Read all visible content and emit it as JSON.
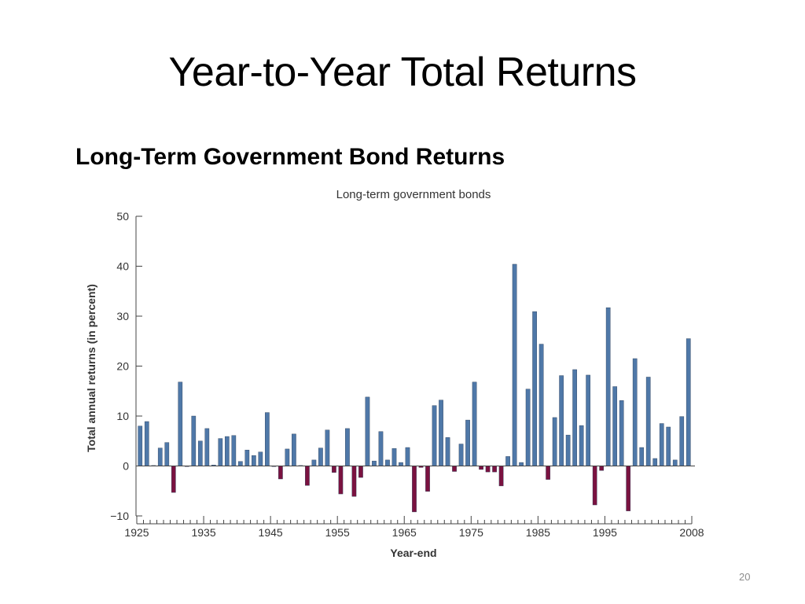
{
  "slide": {
    "title": "Year-to-Year Total Returns",
    "subtitle": "Long-Term Government Bond Returns",
    "page_number": "20"
  },
  "colors": {
    "positive_bar": "#4f78a8",
    "negative_bar": "#7a1240",
    "axis": "#444444"
  },
  "chart_data": {
    "type": "bar",
    "title": "Long-term government bonds",
    "xlabel": "Year-end",
    "ylabel": "Total annual returns (in percent)",
    "ylim": [
      -10,
      50
    ],
    "yticks": [
      -10,
      0,
      10,
      20,
      30,
      40,
      50
    ],
    "ytick_labels": [
      "−10",
      "0",
      "10",
      "20",
      "30",
      "40",
      "50"
    ],
    "xlim": [
      1925,
      2008
    ],
    "xticks": [
      1925,
      1935,
      1945,
      1955,
      1965,
      1975,
      1985,
      1995,
      2008
    ],
    "xtick_labels": [
      "1925",
      "1935",
      "1945",
      "1955",
      "1965",
      "1975",
      "1985",
      "1995",
      "2008"
    ],
    "grid": false,
    "x": [
      1926,
      1927,
      1928,
      1929,
      1930,
      1931,
      1932,
      1933,
      1934,
      1935,
      1936,
      1937,
      1938,
      1939,
      1940,
      1941,
      1942,
      1943,
      1944,
      1945,
      1946,
      1947,
      1948,
      1949,
      1950,
      1951,
      1952,
      1953,
      1954,
      1955,
      1956,
      1957,
      1958,
      1959,
      1960,
      1961,
      1962,
      1963,
      1964,
      1965,
      1966,
      1967,
      1968,
      1969,
      1970,
      1971,
      1972,
      1973,
      1974,
      1975,
      1976,
      1977,
      1978,
      1979,
      1980,
      1981,
      1982,
      1983,
      1984,
      1985,
      1986,
      1987,
      1988,
      1989,
      1990,
      1991,
      1992,
      1993,
      1994,
      1995,
      1996,
      1997,
      1998,
      1999,
      2000,
      2001,
      2002,
      2003,
      2004,
      2005,
      2006,
      2007,
      2008
    ],
    "values": [
      8.0,
      8.9,
      0.1,
      3.6,
      4.7,
      -5.3,
      16.8,
      -0.1,
      10.0,
      5.0,
      7.5,
      0.2,
      5.5,
      5.9,
      6.1,
      0.9,
      3.2,
      2.1,
      2.8,
      10.7,
      -0.1,
      -2.6,
      3.4,
      6.4,
      0.1,
      -3.9,
      1.2,
      3.6,
      7.2,
      -1.3,
      -5.6,
      7.5,
      -6.1,
      -2.3,
      13.8,
      1.0,
      6.9,
      1.2,
      3.5,
      0.7,
      3.7,
      -9.2,
      -0.3,
      -5.1,
      12.1,
      13.2,
      5.7,
      -1.1,
      4.4,
      9.2,
      16.8,
      -0.7,
      -1.2,
      -1.2,
      -4.0,
      1.9,
      40.4,
      0.7,
      15.4,
      30.9,
      24.4,
      -2.7,
      9.7,
      18.1,
      6.2,
      19.3,
      8.1,
      18.2,
      -7.8,
      -0.9,
      31.7,
      15.9,
      13.1,
      -9.0,
      21.5,
      3.7,
      17.8,
      1.5,
      8.5,
      7.8,
      1.2,
      9.9,
      25.5
    ]
  }
}
